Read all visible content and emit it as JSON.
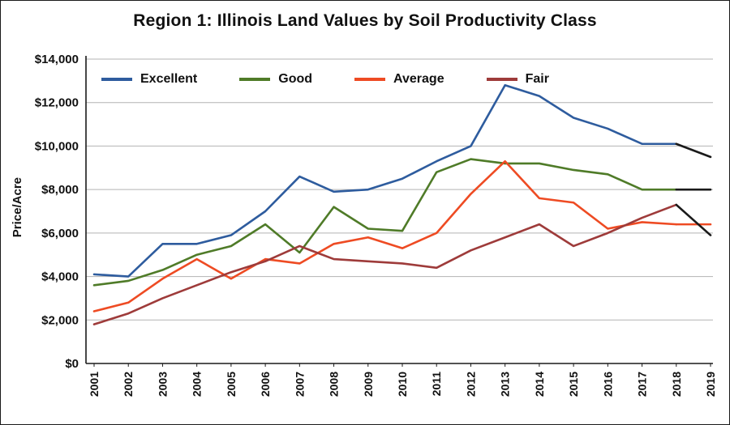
{
  "chart_data": {
    "type": "line",
    "title": "Region 1: Illinois Land Values by Soil Productivity Class",
    "xlabel": "",
    "ylabel": "Price/Acre",
    "ylim": [
      0,
      14000
    ],
    "y_tick_step": 2000,
    "y_tick_labels": [
      "$0",
      "$2,000",
      "$4,000",
      "$6,000",
      "$8,000",
      "$10,000",
      "$12,000",
      "$14,000"
    ],
    "grid": true,
    "grid_color": "#b3b3b3",
    "axis_color": "#1a1a1a",
    "legend_position": "top-left-inside",
    "categories": [
      "2001",
      "2002",
      "2003",
      "2004",
      "2005",
      "2006",
      "2007",
      "2008",
      "2009",
      "2010",
      "2011",
      "2012",
      "2013",
      "2014",
      "2015",
      "2016",
      "2017",
      "2018",
      "2019"
    ],
    "series": [
      {
        "name": "Excellent",
        "color": "#2e5c9e",
        "last_segment_color": "#1a1a1a",
        "values": [
          4100,
          4000,
          5500,
          5500,
          5900,
          7000,
          8600,
          7900,
          8000,
          8500,
          9300,
          10000,
          12800,
          12300,
          11300,
          10800,
          10100,
          10100,
          9500
        ]
      },
      {
        "name": "Good",
        "color": "#4f7b28",
        "last_segment_color": "#1a1a1a",
        "values": [
          3600,
          3800,
          4300,
          5000,
          5400,
          6400,
          5100,
          7200,
          6200,
          6100,
          8800,
          9400,
          9200,
          9200,
          8900,
          8700,
          8000,
          8000,
          8000
        ]
      },
      {
        "name": "Average",
        "color": "#ee4b23",
        "last_segment_color": "#ee4b23",
        "values": [
          2400,
          2800,
          3900,
          4800,
          3900,
          4800,
          4600,
          5500,
          5800,
          5300,
          6000,
          7800,
          9300,
          7600,
          7400,
          6200,
          6500,
          6400,
          6400
        ]
      },
      {
        "name": "Fair",
        "color": "#9e3b3a",
        "last_segment_color": "#1a1a1a",
        "values": [
          1800,
          2300,
          3000,
          3600,
          4200,
          4700,
          5400,
          4800,
          4700,
          4600,
          4400,
          5200,
          5800,
          6400,
          5400,
          6000,
          6700,
          7300,
          5900
        ]
      }
    ]
  }
}
